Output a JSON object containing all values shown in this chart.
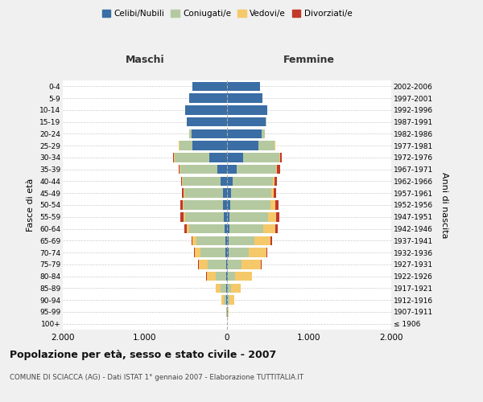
{
  "age_groups": [
    "100+",
    "95-99",
    "90-94",
    "85-89",
    "80-84",
    "75-79",
    "70-74",
    "65-69",
    "60-64",
    "55-59",
    "50-54",
    "45-49",
    "40-44",
    "35-39",
    "30-34",
    "25-29",
    "20-24",
    "15-19",
    "10-14",
    "5-9",
    "0-4"
  ],
  "birth_years": [
    "≤ 1906",
    "1907-1911",
    "1912-1916",
    "1917-1921",
    "1922-1926",
    "1927-1931",
    "1932-1936",
    "1937-1941",
    "1942-1946",
    "1947-1951",
    "1952-1956",
    "1957-1961",
    "1962-1966",
    "1967-1971",
    "1972-1976",
    "1977-1981",
    "1982-1986",
    "1987-1991",
    "1992-1996",
    "1997-2001",
    "2002-2006"
  ],
  "male": {
    "celibi": [
      0,
      0,
      5,
      5,
      10,
      10,
      15,
      20,
      30,
      40,
      45,
      50,
      80,
      120,
      220,
      420,
      430,
      490,
      510,
      460,
      420
    ],
    "coniugati": [
      0,
      5,
      30,
      70,
      130,
      230,
      310,
      350,
      430,
      470,
      480,
      470,
      460,
      450,
      420,
      160,
      30,
      5,
      0,
      0,
      0
    ],
    "vedovi": [
      0,
      5,
      30,
      60,
      110,
      100,
      70,
      50,
      30,
      20,
      10,
      5,
      5,
      5,
      5,
      5,
      0,
      0,
      0,
      0,
      0
    ],
    "divorziati": [
      0,
      0,
      0,
      0,
      5,
      10,
      10,
      10,
      30,
      40,
      35,
      20,
      15,
      15,
      15,
      5,
      5,
      0,
      0,
      0,
      0
    ]
  },
  "female": {
    "nubili": [
      0,
      5,
      5,
      5,
      10,
      10,
      15,
      15,
      25,
      30,
      40,
      50,
      70,
      120,
      200,
      380,
      420,
      470,
      490,
      430,
      400
    ],
    "coniugate": [
      0,
      5,
      20,
      40,
      90,
      170,
      250,
      320,
      420,
      470,
      490,
      490,
      490,
      480,
      440,
      200,
      40,
      10,
      0,
      0,
      0
    ],
    "vedove": [
      0,
      10,
      60,
      120,
      200,
      230,
      220,
      190,
      140,
      100,
      60,
      30,
      15,
      10,
      5,
      5,
      0,
      0,
      0,
      0,
      0
    ],
    "divorziate": [
      0,
      0,
      0,
      0,
      5,
      10,
      10,
      20,
      30,
      40,
      40,
      30,
      30,
      40,
      25,
      5,
      5,
      0,
      0,
      0,
      0
    ]
  },
  "colors": {
    "celibi_nubili": "#3a6ea5",
    "coniugati": "#b5c9a0",
    "vedovi": "#f5c869",
    "divorziati": "#c0392b"
  },
  "xlim": 2000,
  "title": "Popolazione per età, sesso e stato civile - 2007",
  "subtitle": "COMUNE DI SCIACCA (AG) - Dati ISTAT 1° gennaio 2007 - Elaborazione TUTTITALIA.IT",
  "ylabel_left": "Fasce di età",
  "ylabel_right": "Anni di nascita",
  "xlabel_maschi": "Maschi",
  "xlabel_femmine": "Femmine",
  "background_color": "#f0f0f0",
  "plot_bg": "#ffffff"
}
